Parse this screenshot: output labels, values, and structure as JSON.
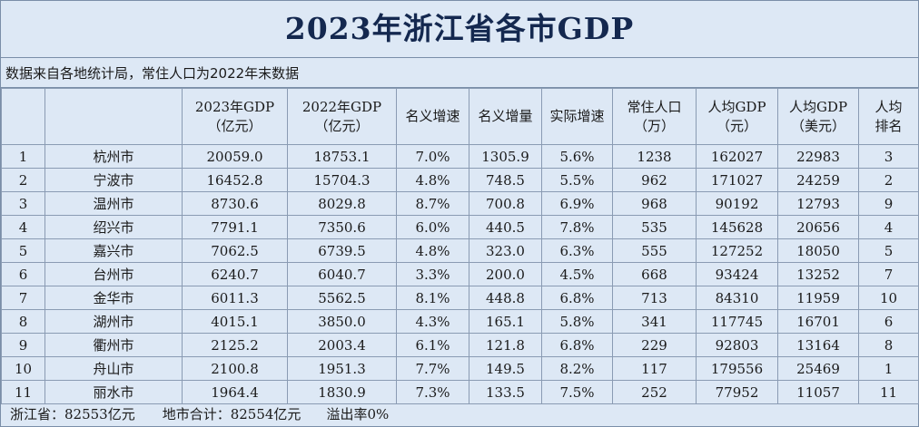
{
  "title": "2023年浙江省各市GDP",
  "subtitle": "数据来自各地统计局，常住人口为2022年末数据",
  "headers": [
    [
      "",
      ""
    ],
    [
      "",
      ""
    ],
    [
      "2023年GDP",
      "（亿元）"
    ],
    [
      "2022年GDP",
      "（亿元）"
    ],
    [
      "名义增速",
      ""
    ],
    [
      "名义增量",
      ""
    ],
    [
      "实际增速",
      ""
    ],
    [
      "常住人口",
      "（万）"
    ],
    [
      "人均GDP",
      "（元）"
    ],
    [
      "人均GDP",
      "（美元）"
    ],
    [
      "人均",
      "排名"
    ]
  ],
  "rows": [
    [
      "1",
      "杭州市",
      "20059.0",
      "18753.1",
      "7.0%",
      "1305.9",
      "5.6%",
      "1238",
      "162027",
      "22983",
      "3"
    ],
    [
      "2",
      "宁波市",
      "16452.8",
      "15704.3",
      "4.8%",
      "748.5",
      "5.5%",
      "962",
      "171027",
      "24259",
      "2"
    ],
    [
      "3",
      "温州市",
      "8730.6",
      "8029.8",
      "8.7%",
      "700.8",
      "6.9%",
      "968",
      "90192",
      "12793",
      "9"
    ],
    [
      "4",
      "绍兴市",
      "7791.1",
      "7350.6",
      "6.0%",
      "440.5",
      "7.8%",
      "535",
      "145628",
      "20656",
      "4"
    ],
    [
      "5",
      "嘉兴市",
      "7062.5",
      "6739.5",
      "4.8%",
      "323.0",
      "6.3%",
      "555",
      "127252",
      "18050",
      "5"
    ],
    [
      "6",
      "台州市",
      "6240.7",
      "6040.7",
      "3.3%",
      "200.0",
      "4.5%",
      "668",
      "93424",
      "13252",
      "7"
    ],
    [
      "7",
      "金华市",
      "6011.3",
      "5562.5",
      "8.1%",
      "448.8",
      "6.8%",
      "713",
      "84310",
      "11959",
      "10"
    ],
    [
      "8",
      "湖州市",
      "4015.1",
      "3850.0",
      "4.3%",
      "165.1",
      "5.8%",
      "341",
      "117745",
      "16701",
      "6"
    ],
    [
      "9",
      "衢州市",
      "2125.2",
      "2003.4",
      "6.1%",
      "121.8",
      "6.8%",
      "229",
      "92803",
      "13164",
      "8"
    ],
    [
      "10",
      "舟山市",
      "2100.8",
      "1951.3",
      "7.7%",
      "149.5",
      "8.2%",
      "117",
      "179556",
      "25469",
      "1"
    ],
    [
      "11",
      "丽水市",
      "1964.4",
      "1830.9",
      "7.3%",
      "133.5",
      "7.5%",
      "252",
      "77952",
      "11057",
      "11"
    ]
  ],
  "footer": {
    "province_total": "浙江省：82553亿元",
    "city_sum": "地市合计：82554亿元",
    "overflow_rate": "溢出率0%"
  }
}
